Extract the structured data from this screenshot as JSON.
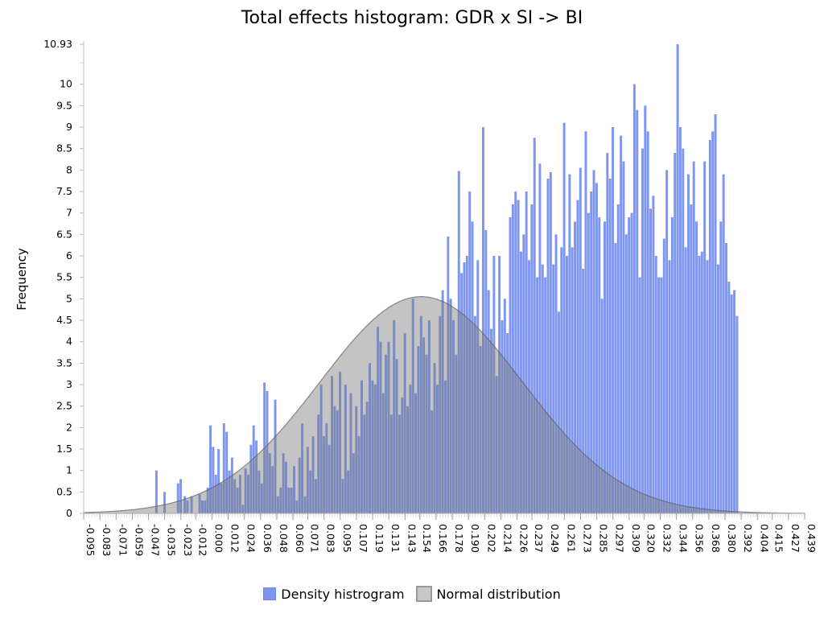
{
  "chart_data": {
    "type": "bar",
    "title": "Total effects histogram: GDR x SI -> BI",
    "ylabel": "Frequency",
    "xlabel": "",
    "ylim": [
      0,
      10.93
    ],
    "xlim": [
      -0.095,
      0.439
    ],
    "ytick_labels": [
      "0",
      "0.5",
      "1",
      "1.5",
      "2",
      "2.5",
      "3",
      "3.5",
      "4",
      "4.5",
      "5",
      "5.5",
      "6",
      "6.5",
      "7",
      "7.5",
      "8",
      "8.5",
      "9",
      "9.5",
      "10",
      "10.93"
    ],
    "xtick_labels": [
      "-0.095",
      "-0.083",
      "-0.071",
      "-0.059",
      "-0.047",
      "-0.035",
      "-0.023",
      "-0.012",
      "0.000",
      "0.012",
      "0.024",
      "0.036",
      "0.048",
      "0.060",
      "0.071",
      "0.083",
      "0.095",
      "0.107",
      "0.119",
      "0.131",
      "0.143",
      "0.154",
      "0.166",
      "0.178",
      "0.190",
      "0.202",
      "0.214",
      "0.226",
      "0.237",
      "0.249",
      "0.261",
      "0.273",
      "0.285",
      "0.297",
      "0.309",
      "0.320",
      "0.332",
      "0.344",
      "0.356",
      "0.368",
      "0.380",
      "0.392",
      "0.404",
      "0.415",
      "0.427",
      "0.439"
    ],
    "grid": false,
    "legend_position": "bottom",
    "series": [
      {
        "name": "Density histrogram",
        "kind": "histogram",
        "color": "#7f96f1",
        "bin_centers": [
          -0.041,
          -0.035,
          -0.033,
          -0.029,
          -0.027,
          -0.025,
          -0.023,
          -0.02,
          -0.018,
          -0.017,
          -0.015,
          -0.012,
          -0.011,
          -0.009,
          -0.007,
          -0.005,
          -0.003,
          -0.001,
          0.001,
          0.003,
          0.005,
          0.007,
          0.009,
          0.011,
          0.013,
          0.015,
          0.017,
          0.019,
          0.021,
          0.023,
          0.025,
          0.027,
          0.029,
          0.031,
          0.033,
          0.035,
          0.037,
          0.039,
          0.041,
          0.043,
          0.045,
          0.047,
          0.049,
          0.051,
          0.053,
          0.055,
          0.057,
          0.059,
          0.061,
          0.063,
          0.065,
          0.067,
          0.069,
          0.071,
          0.073,
          0.075,
          0.077,
          0.079,
          0.081,
          0.083,
          0.085,
          0.087,
          0.089,
          0.091,
          0.093,
          0.095,
          0.097,
          0.099,
          0.101,
          0.103,
          0.105,
          0.107,
          0.109,
          0.111,
          0.113,
          0.115,
          0.117,
          0.119,
          0.121,
          0.123,
          0.125,
          0.127,
          0.129,
          0.131,
          0.133,
          0.135,
          0.137,
          0.139,
          0.141,
          0.143,
          0.145,
          0.147,
          0.149,
          0.151,
          0.153,
          0.155,
          0.157,
          0.159,
          0.161,
          0.163,
          0.165,
          0.167,
          0.169,
          0.171,
          0.173,
          0.175,
          0.177,
          0.179,
          0.181,
          0.183,
          0.185,
          0.187,
          0.189,
          0.191,
          0.193,
          0.195,
          0.197,
          0.199,
          0.201,
          0.203,
          0.205,
          0.207,
          0.209,
          0.211,
          0.213,
          0.215,
          0.217,
          0.219,
          0.221,
          0.223,
          0.225,
          0.227,
          0.229,
          0.231,
          0.233,
          0.235,
          0.237,
          0.239,
          0.241,
          0.243,
          0.245,
          0.247,
          0.249,
          0.251,
          0.253,
          0.255,
          0.257,
          0.259,
          0.261,
          0.263,
          0.265,
          0.267,
          0.269,
          0.271,
          0.273,
          0.275,
          0.277,
          0.279,
          0.281,
          0.283,
          0.285,
          0.287,
          0.289,
          0.291,
          0.293,
          0.295,
          0.297,
          0.299,
          0.301,
          0.303,
          0.305,
          0.307,
          0.309,
          0.311,
          0.313,
          0.315,
          0.317,
          0.319,
          0.321,
          0.323,
          0.325,
          0.327,
          0.329,
          0.331,
          0.333,
          0.335,
          0.337,
          0.339,
          0.341,
          0.343,
          0.345,
          0.347,
          0.349,
          0.351,
          0.353,
          0.355,
          0.357,
          0.359,
          0.361,
          0.363,
          0.365,
          0.367,
          0.369,
          0.371,
          0.373,
          0.375,
          0.377,
          0.379,
          0.381,
          0.383,
          0.385,
          0.387,
          0.389
        ],
        "values": [
          1.0,
          0.5,
          0.0,
          0.0,
          0.0,
          0.7,
          0.8,
          0.4,
          0.3,
          0.0,
          0.4,
          0.0,
          0.0,
          0.45,
          0.3,
          0.3,
          0.6,
          2.05,
          1.55,
          0.9,
          1.5,
          0.7,
          2.1,
          1.9,
          1.0,
          1.3,
          0.8,
          0.6,
          0.9,
          0.2,
          1.05,
          0.9,
          1.6,
          2.05,
          1.7,
          1.0,
          0.7,
          3.05,
          2.85,
          1.4,
          1.1,
          2.65,
          0.4,
          0.6,
          1.4,
          1.2,
          0.6,
          0.6,
          1.1,
          0.3,
          1.3,
          2.1,
          0.4,
          1.55,
          1.0,
          1.8,
          0.8,
          2.3,
          3.0,
          1.8,
          2.1,
          1.6,
          3.2,
          2.5,
          2.4,
          3.3,
          0.8,
          3.0,
          1.0,
          2.8,
          1.4,
          2.5,
          1.8,
          3.1,
          2.3,
          2.6,
          3.5,
          3.1,
          3.0,
          4.35,
          4.0,
          2.8,
          3.7,
          4.0,
          2.3,
          4.5,
          3.6,
          2.3,
          2.7,
          4.2,
          2.5,
          3.0,
          5.0,
          2.8,
          3.9,
          4.6,
          4.1,
          3.7,
          4.5,
          2.4,
          3.5,
          3.0,
          4.6,
          5.2,
          3.1,
          6.45,
          5.0,
          4.5,
          3.7,
          7.98,
          5.6,
          5.85,
          6.0,
          7.5,
          6.8,
          4.6,
          5.9,
          3.9,
          9.0,
          6.6,
          5.2,
          4.3,
          6.0,
          3.2,
          6.0,
          4.5,
          5.0,
          4.2,
          6.9,
          7.2,
          7.5,
          7.3,
          6.1,
          6.5,
          7.5,
          5.9,
          7.2,
          8.75,
          5.5,
          8.15,
          5.8,
          5.5,
          7.8,
          7.95,
          5.8,
          6.5,
          4.7,
          6.2,
          9.1,
          6.0,
          7.9,
          6.2,
          6.8,
          7.3,
          8.05,
          5.7,
          8.9,
          7.0,
          7.5,
          8.0,
          7.7,
          6.9,
          5.0,
          6.8,
          8.4,
          7.8,
          9.0,
          6.3,
          7.2,
          8.8,
          8.2,
          6.5,
          6.9,
          7.0,
          10.0,
          9.4,
          5.5,
          8.5,
          9.5,
          8.9,
          7.1,
          7.4,
          6.0,
          5.5,
          5.5,
          6.4,
          8.0,
          5.9,
          6.9,
          8.4,
          10.93,
          9.0,
          8.5,
          6.2,
          7.9,
          7.2,
          8.2,
          6.8,
          6.0,
          6.1,
          8.2,
          5.9,
          8.7,
          8.9,
          9.3,
          5.8,
          6.8,
          7.9,
          6.3,
          5.4,
          5.1,
          5.2,
          4.6,
          5.1
        ]
      },
      {
        "name": "Normal distribution",
        "kind": "normal_curve",
        "color": "#808080",
        "mean": 0.155,
        "sd": 0.075,
        "peak": 5.05
      }
    ]
  }
}
